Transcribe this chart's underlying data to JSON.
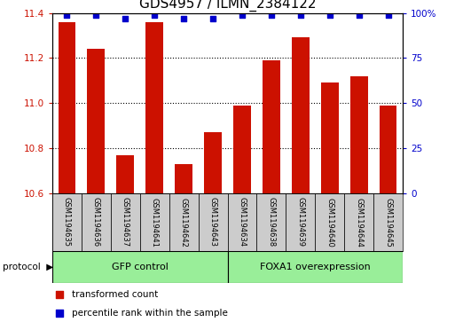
{
  "title": "GDS4957 / ILMN_2384122",
  "samples": [
    "GSM1194635",
    "GSM1194636",
    "GSM1194637",
    "GSM1194641",
    "GSM1194642",
    "GSM1194643",
    "GSM1194634",
    "GSM1194638",
    "GSM1194639",
    "GSM1194640",
    "GSM1194644",
    "GSM1194645"
  ],
  "transformed_counts": [
    11.36,
    11.24,
    10.77,
    11.36,
    10.73,
    10.87,
    10.99,
    11.19,
    11.29,
    11.09,
    11.12,
    10.99
  ],
  "percentile_ranks": [
    99,
    99,
    97,
    99,
    97,
    97,
    99,
    99,
    99,
    99,
    99,
    99
  ],
  "ylim_left": [
    10.6,
    11.4
  ],
  "ylim_right": [
    0,
    100
  ],
  "yticks_left": [
    10.6,
    10.8,
    11.0,
    11.2,
    11.4
  ],
  "yticks_right": [
    0,
    25,
    50,
    75,
    100
  ],
  "bar_color": "#CC1100",
  "dot_color": "#0000CC",
  "group1_label": "GFP control",
  "group2_label": "FOXA1 overexpression",
  "group1_count": 6,
  "group2_count": 6,
  "legend_bar_label": "transformed count",
  "legend_dot_label": "percentile rank within the sample",
  "protocol_label": "protocol",
  "sample_bg_color": "#CCCCCC",
  "group_bg_color": "#99EE99",
  "title_fontsize": 11,
  "tick_fontsize": 7.5,
  "sample_fontsize": 6,
  "group_fontsize": 8,
  "legend_fontsize": 7.5
}
